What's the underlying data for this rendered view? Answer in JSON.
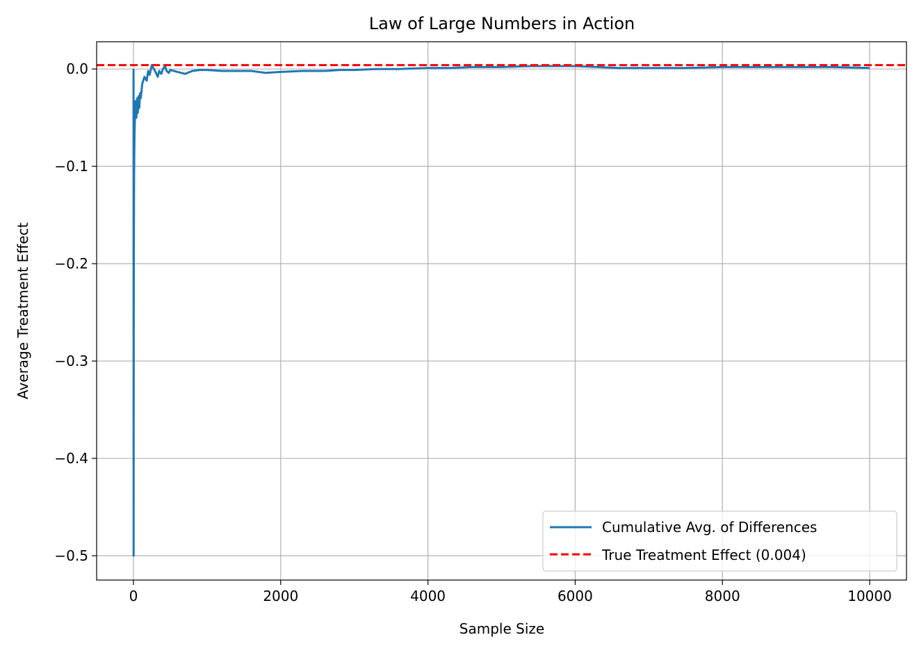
{
  "chart_data": {
    "type": "line",
    "title": "Law of Large Numbers in Action",
    "xlabel": "Sample Size",
    "ylabel": "Average Treatment Effect",
    "xlim": [
      -500,
      10500
    ],
    "ylim": [
      -0.525,
      0.028
    ],
    "x_ticks": [
      0,
      2000,
      4000,
      6000,
      8000,
      10000
    ],
    "x_tick_labels": [
      "0",
      "2000",
      "4000",
      "6000",
      "8000",
      "10000"
    ],
    "y_ticks": [
      0.0,
      -0.1,
      -0.2,
      -0.3,
      -0.4,
      -0.5
    ],
    "y_tick_labels": [
      "0.0",
      "−0.1",
      "−0.2",
      "−0.3",
      "−0.4",
      "−0.5"
    ],
    "grid": true,
    "legend_position": "lower-right",
    "colors": {
      "series": "#1f77b4",
      "reference": "#ff0000",
      "grid": "#b0b0b0"
    },
    "series": [
      {
        "name": "Cumulative Avg. of Differences",
        "style": "solid",
        "x": [
          1,
          2,
          3,
          5,
          8,
          10,
          15,
          20,
          30,
          40,
          50,
          60,
          70,
          80,
          90,
          100,
          120,
          150,
          180,
          200,
          220,
          250,
          270,
          300,
          330,
          350,
          380,
          400,
          430,
          450,
          480,
          500,
          600,
          700,
          800,
          900,
          1000,
          1200,
          1400,
          1600,
          1800,
          2000,
          2300,
          2600,
          2800,
          3000,
          3300,
          3600,
          4000,
          4300,
          4600,
          5000,
          5400,
          5800,
          6000,
          6300,
          6600,
          7000,
          7500,
          8000,
          8500,
          9000,
          9500,
          10000
        ],
        "y": [
          0.0,
          -0.5,
          -0.333,
          -0.2,
          -0.125,
          -0.1,
          -0.067,
          -0.05,
          -0.033,
          -0.05,
          -0.03,
          -0.045,
          -0.028,
          -0.04,
          -0.025,
          -0.03,
          -0.015,
          -0.008,
          -0.012,
          -0.002,
          -0.006,
          0.004,
          0.001,
          -0.003,
          -0.008,
          -0.002,
          -0.005,
          0.0,
          0.003,
          -0.002,
          -0.004,
          -0.001,
          -0.003,
          -0.005,
          -0.002,
          -0.001,
          -0.001,
          -0.002,
          -0.002,
          -0.002,
          -0.004,
          -0.003,
          -0.002,
          -0.002,
          -0.001,
          -0.001,
          0.0,
          0.0,
          0.001,
          0.001,
          0.002,
          0.002,
          0.003,
          0.003,
          0.003,
          0.002,
          0.001,
          0.001,
          0.001,
          0.002,
          0.002,
          0.002,
          0.002,
          0.001
        ]
      },
      {
        "name": "True Treatment Effect (0.004)",
        "style": "dashed",
        "y_constant": 0.004
      }
    ]
  }
}
